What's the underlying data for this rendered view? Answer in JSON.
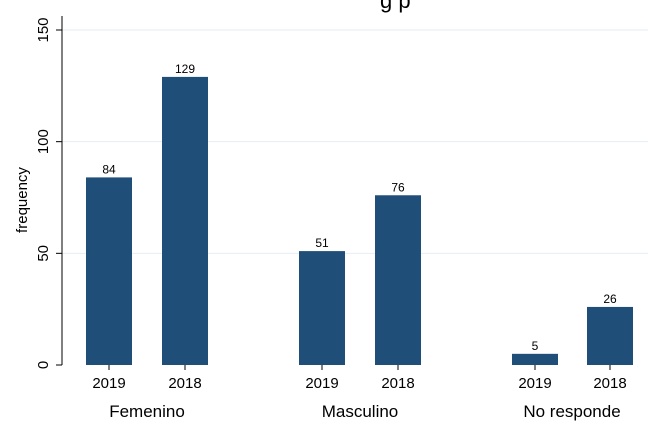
{
  "chart_data": {
    "type": "bar",
    "title_partial": "g  p",
    "ylabel": "frequency",
    "xlabel": "",
    "ylim": [
      0,
      150
    ],
    "yticks": [
      0,
      50,
      100,
      150
    ],
    "grid": true,
    "bar_color": "#1f4e79",
    "groups": [
      {
        "name": "Femenino",
        "bars": [
          {
            "label": "2019",
            "value": 84
          },
          {
            "label": "2018",
            "value": 129
          }
        ]
      },
      {
        "name": "Masculino",
        "bars": [
          {
            "label": "2019",
            "value": 51
          },
          {
            "label": "2018",
            "value": 76
          }
        ]
      },
      {
        "name": "No responde",
        "bars": [
          {
            "label": "2019",
            "value": 5
          },
          {
            "label": "2018",
            "value": 26
          }
        ]
      }
    ]
  }
}
